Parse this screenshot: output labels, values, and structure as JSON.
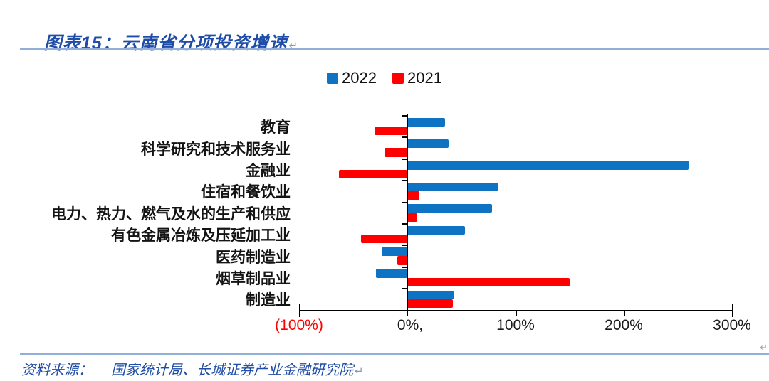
{
  "title": {
    "text": "图表15：云南省分项投资增速",
    "paragraph_mark": "↵",
    "color": "#1E4CA6"
  },
  "chart_data": {
    "type": "bar",
    "orientation": "horizontal",
    "title": "云南省分项投资增速",
    "unit": "%",
    "categories": [
      "教育",
      "科学研究和技术服务业",
      "金融业",
      "住宿和餐饮业",
      "电力、热力、燃气及水的生产和供应",
      "有色金属冶炼及压延加工业",
      "医药制造业",
      "烟草制品业",
      "制造业"
    ],
    "series": [
      {
        "name": "2022",
        "color": "#0D73C2",
        "values": [
          35,
          38,
          260,
          84,
          78,
          53,
          -24,
          -29,
          43
        ]
      },
      {
        "name": "2021",
        "color": "#FF0000",
        "values": [
          -30,
          -21,
          -63,
          11,
          9,
          -43,
          -9,
          150,
          42
        ]
      }
    ],
    "x_axis": {
      "range": [
        -100,
        300
      ],
      "tick_values": [
        -100,
        0,
        100,
        200,
        300
      ],
      "tick_labels": [
        "(100%)",
        "0%,",
        "100%",
        "200%",
        "300%"
      ],
      "tick_label_colors": [
        "#FF0000",
        "#1a1a1a",
        "#1a1a1a",
        "#1a1a1a",
        "#1a1a1a"
      ]
    },
    "grid": false,
    "legend_position": "top-center"
  },
  "footer": {
    "source_label": "资料来源：",
    "source_text": "国家统计局、长城证券产业金融研究院",
    "paragraph_mark": "↵"
  },
  "decorations": {
    "right_edge_mark": "↵"
  }
}
